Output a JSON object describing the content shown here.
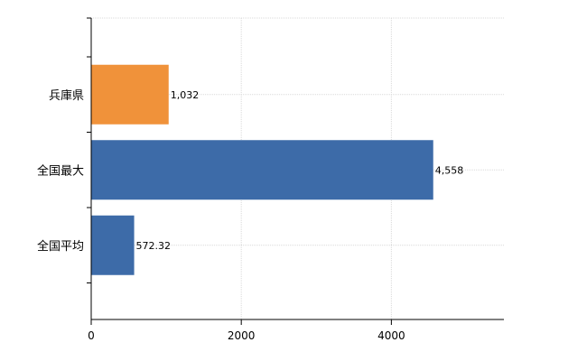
{
  "chart_data": {
    "type": "bar",
    "orientation": "horizontal",
    "categories": [
      "兵庫県",
      "全国最大",
      "全国平均"
    ],
    "values": [
      1032,
      4558,
      572.32
    ],
    "data_labels": [
      "1,032",
      "4,558",
      "572.32"
    ],
    "colors": [
      "#f0923a",
      "#3d6ba8",
      "#3d6ba8"
    ],
    "xlim": [
      0,
      5500
    ],
    "x_ticks": [
      0,
      2000,
      4000
    ],
    "x_tick_labels": [
      "0",
      "2000",
      "4000"
    ],
    "grid": true,
    "legend": "none",
    "title": "",
    "xlabel": "",
    "ylabel": ""
  }
}
